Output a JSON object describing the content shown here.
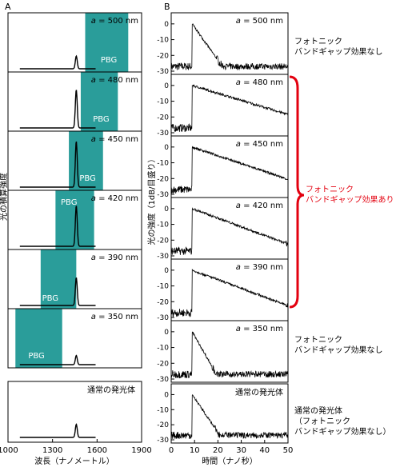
{
  "figure": {
    "label_a": "A",
    "label_b": "B",
    "pbg_color": "#2a9d9a",
    "red_color": "#e3000f"
  },
  "panel_a": {
    "ylabel": "光の積算強度",
    "xlabel": "波長（ナノメートル）",
    "xticks": [
      "1000",
      "1300",
      "1600",
      "1900"
    ],
    "pbg_label": "PBG",
    "rows": [
      {
        "label": "a = 500 nm",
        "a_value": 500,
        "pbg_range_nm": [
          1520,
          1810
        ]
      },
      {
        "label": "a = 480 nm",
        "a_value": 480,
        "pbg_range_nm": [
          1490,
          1740
        ]
      },
      {
        "label": "a = 450 nm",
        "a_value": 450,
        "pbg_range_nm": [
          1410,
          1640
        ]
      },
      {
        "label": "a = 420 nm",
        "a_value": 420,
        "pbg_range_nm": [
          1320,
          1580
        ]
      },
      {
        "label": "a = 390 nm",
        "a_value": 390,
        "pbg_range_nm": [
          1220,
          1460
        ]
      },
      {
        "label": "a = 350 nm",
        "a_value": 350,
        "pbg_range_nm": [
          1050,
          1365
        ]
      }
    ],
    "reference_label": "通常の発光体"
  },
  "panel_b": {
    "ylabel": "光の強度（1dB/目盛り）",
    "xlabel": "時間（ナノ秒）",
    "xticks": [
      "0",
      "10",
      "20",
      "30",
      "40",
      "50"
    ],
    "yticks": [
      "0",
      "-10",
      "-20",
      "-30"
    ],
    "rows": [
      {
        "label": "a = 500 nm"
      },
      {
        "label": "a = 480 nm"
      },
      {
        "label": "a = 450 nm"
      },
      {
        "label": "a = 420 nm"
      },
      {
        "label": "a = 390 nm"
      },
      {
        "label": "a = 350 nm"
      }
    ],
    "reference_label": "通常の発光体"
  },
  "annotations": {
    "no_effect_top": [
      "フォトニック",
      "バンドギャップ効果なし"
    ],
    "effect_red": [
      "フォトニック",
      "バンドギャップ効果あり"
    ],
    "no_effect_mid": [
      "フォトニック",
      "バンドギャップ効果なし"
    ],
    "reference": [
      "通常の発光体",
      "（フォトニック",
      "バンドギャップ効果なし）"
    ]
  },
  "chart_data": [
    {
      "type": "line",
      "title": "A",
      "xlabel": "波長（ナノメートル）",
      "ylabel": "光の積算強度",
      "xlim": [
        1000,
        1900
      ],
      "series": [
        {
          "name": "a = 500 nm",
          "peak_x": 1460,
          "peak_rel": 0.25
        },
        {
          "name": "a = 480 nm",
          "peak_x": 1460,
          "peak_rel": 0.75
        },
        {
          "name": "a = 450 nm",
          "peak_x": 1460,
          "peak_rel": 0.9
        },
        {
          "name": "a = 420 nm",
          "peak_x": 1460,
          "peak_rel": 0.8
        },
        {
          "name": "a = 390 nm",
          "peak_x": 1460,
          "peak_rel": 0.55
        },
        {
          "name": "a = 350 nm",
          "peak_x": 1460,
          "peak_rel": 0.18
        },
        {
          "name": "通常の発光体",
          "peak_x": 1460,
          "peak_rel": 0.25
        }
      ]
    },
    {
      "type": "line",
      "title": "B",
      "xlabel": "時間（ナノ秒）",
      "ylabel": "光の強度（1dB/目盛り）",
      "xlim": [
        0,
        50
      ],
      "ylim": [
        -30,
        5
      ],
      "series": [
        {
          "name": "a = 500 nm",
          "onset_ns": 9,
          "decay_db_per_ns": 2.1,
          "floor_db": -27
        },
        {
          "name": "a = 480 nm",
          "onset_ns": 9,
          "decay_db_per_ns": 0.45,
          "floor_db": -27
        },
        {
          "name": "a = 450 nm",
          "onset_ns": 9,
          "decay_db_per_ns": 0.5,
          "floor_db": -27
        },
        {
          "name": "a = 420 nm",
          "onset_ns": 9,
          "decay_db_per_ns": 0.55,
          "floor_db": -27
        },
        {
          "name": "a = 390 nm",
          "onset_ns": 9,
          "decay_db_per_ns": 0.55,
          "floor_db": -27
        },
        {
          "name": "a = 350 nm",
          "onset_ns": 9,
          "decay_db_per_ns": 2.6,
          "floor_db": -27
        },
        {
          "name": "通常の発光体",
          "onset_ns": 9,
          "decay_db_per_ns": 2.3,
          "floor_db": -27
        }
      ]
    }
  ]
}
